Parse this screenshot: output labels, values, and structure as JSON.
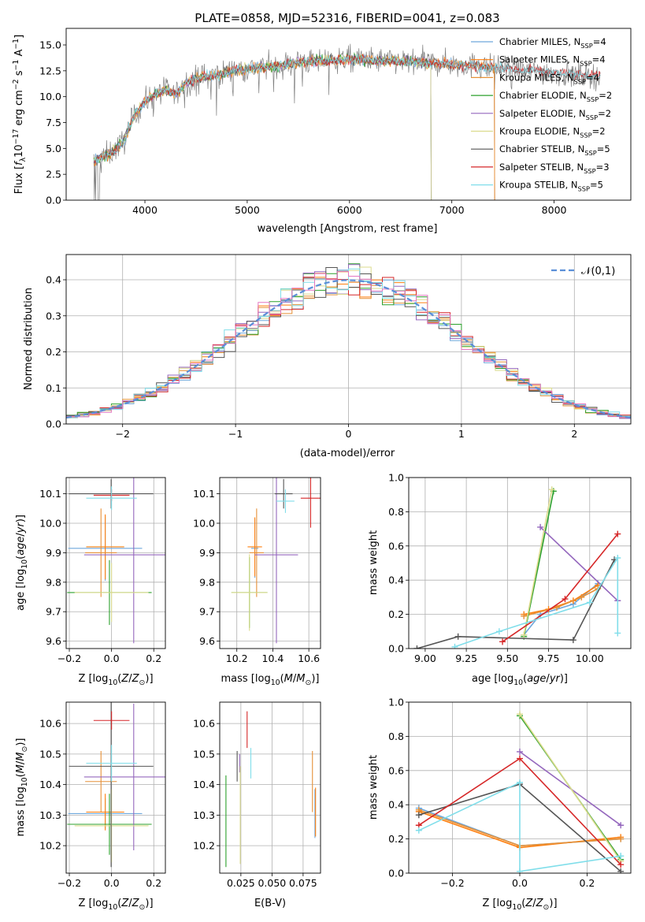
{
  "figure_title": "PLATE=0858, MJD=52316, FIBERID=0041, z=0.083",
  "colors": {
    "Chabrier MILES": "#6fa8dc",
    "Salpeter MILES": "#ff7f0e",
    "Kroupa MILES": "#e69138",
    "Chabrier ELODIE": "#2ca02c",
    "Salpeter ELODIE": "#9467bd",
    "Kroupa ELODIE": "#dbdb8d",
    "Chabrier STELIB": "#555555",
    "Salpeter STELIB": "#d62728",
    "Kroupa STELIB": "#80deea",
    "data": "#808080",
    "normal": "#5b8fd8",
    "hist_extra": "#e377c2"
  },
  "chart_data": [
    {
      "id": "spectrum",
      "type": "line",
      "title": "PLATE=0858, MJD=52316, FIBERID=0041, z=0.083",
      "xlabel": "wavelength [Angstrom, rest frame]",
      "ylabel": "Flux [f_λ10^-17 erg cm^-2 s^-1 A^-1]",
      "xlim": [
        3230,
        8750
      ],
      "ylim": [
        0,
        16.6
      ],
      "xticks": [
        4000,
        5000,
        6000,
        7000,
        8000
      ],
      "yticks": [
        0.0,
        2.5,
        5.0,
        7.5,
        10.0,
        12.5,
        15.0
      ],
      "legend_location": "right",
      "series": [
        {
          "name": "Chabrier MILES",
          "sub": "SSP",
          "n": "4"
        },
        {
          "name": "Salpeter MILES",
          "sub": "SSP",
          "n": "4"
        },
        {
          "name": "Kroupa MILES",
          "sub": "SSP",
          "n": "4"
        },
        {
          "name": "Chabrier ELODIE",
          "sub": "SSP",
          "n": "2"
        },
        {
          "name": "Salpeter ELODIE",
          "sub": "SSP",
          "n": "2"
        },
        {
          "name": "Kroupa ELODIE",
          "sub": "SSP",
          "n": "2"
        },
        {
          "name": "Chabrier STELIB",
          "sub": "SSP",
          "n": "5"
        },
        {
          "name": "Salpeter STELIB",
          "sub": "SSP",
          "n": "3"
        },
        {
          "name": "Kroupa STELIB",
          "sub": "SSP",
          "n": "5"
        }
      ],
      "continuum": {
        "x": [
          3500,
          3600,
          3700,
          3800,
          3900,
          4000,
          4100,
          4200,
          4300,
          4400,
          4500,
          4700,
          4900,
          5100,
          5300,
          5500,
          5700,
          6000,
          6300,
          6600,
          6900,
          7200,
          7500,
          7800,
          8100,
          8400
        ],
        "y": [
          3.8,
          4.2,
          4.8,
          5.8,
          8.3,
          9.5,
          10.2,
          10.7,
          10.2,
          11.3,
          11.8,
          12.1,
          12.6,
          12.8,
          13.0,
          13.3,
          13.5,
          13.6,
          13.5,
          13.4,
          13.2,
          13.0,
          12.7,
          12.5,
          12.2,
          12.0
        ]
      },
      "model_cutoffs": {
        "Kroupa ELODIE": 6800,
        "Salpeter ELODIE": 6800,
        "Chabrier ELODIE": 6800,
        "Kroupa MILES": 7420,
        "Salpeter MILES": 7420,
        "Chabrier MILES": 7420
      }
    },
    {
      "id": "residuals",
      "type": "step-histogram",
      "xlabel": "(data-model)/error",
      "ylabel": "Normed distribution",
      "xlim": [
        -2.5,
        2.5
      ],
      "ylim": [
        0,
        0.47
      ],
      "xticks": [
        -2,
        -1,
        0,
        1,
        2
      ],
      "yticks": [
        0.0,
        0.1,
        0.2,
        0.3,
        0.4
      ],
      "legend": "𝒩(0,1)",
      "legend_location": "upper right",
      "bin_width": 0.1
    },
    {
      "id": "age_vs_Z",
      "type": "errorbar",
      "xlabel": "Z [log10(Z/Z⊙)]",
      "ylabel": "age  [log10(age/yr)]",
      "xlim": [
        -0.215,
        0.255
      ],
      "ylim": [
        9.575,
        10.155
      ],
      "xticks": [
        -0.2,
        0.0,
        0.2
      ],
      "xticklabels": [
        "−0.2",
        "0.0",
        "0.2"
      ],
      "yticks": [
        9.6,
        9.7,
        9.8,
        9.9,
        10.0,
        10.1
      ],
      "points": [
        {
          "model": "Chabrier MILES",
          "x": -0.03,
          "xerr": 0.175,
          "y": 9.915,
          "yerr": 0.11
        },
        {
          "model": "Salpeter MILES",
          "x": -0.03,
          "xerr": 0.09,
          "y": 9.92,
          "yerr": 0.11
        },
        {
          "model": "Kroupa MILES",
          "x": -0.05,
          "xerr": 0.075,
          "y": 9.9,
          "yerr": 0.15
        },
        {
          "model": "Chabrier ELODIE",
          "x": -0.01,
          "xerr": 0.2,
          "y": 9.765,
          "yerr": 0.11
        },
        {
          "model": "Salpeter ELODIE",
          "x": 0.105,
          "xerr": 0.235,
          "y": 9.893,
          "yerr": 0.3
        },
        {
          "model": "Kroupa ELODIE",
          "x": 0.0,
          "xerr": 0.175,
          "y": 9.765,
          "yerr": 0.1
        },
        {
          "model": "Chabrier STELIB",
          "x": -0.002,
          "xerr": 0.2,
          "y": 10.1,
          "yerr": 0.05
        },
        {
          "model": "Salpeter STELIB",
          "x": 0.0,
          "xerr": 0.085,
          "y": 10.095,
          "yerr": 0.02
        },
        {
          "model": "Kroupa STELIB",
          "x": 0.0,
          "xerr": 0.12,
          "y": 10.085,
          "yerr": 0.04
        }
      ]
    },
    {
      "id": "age_vs_mass",
      "type": "errorbar",
      "xlabel": "mass [log10(M/M⊙)]",
      "xlim": [
        10.105,
        10.665
      ],
      "ylim": [
        9.575,
        10.155
      ],
      "xticks": [
        10.2,
        10.4,
        10.6
      ],
      "xticklabels": [
        "10.2",
        "10.4",
        "10.6"
      ],
      "yticks": [
        9.6,
        9.7,
        9.8,
        9.9,
        10.0,
        10.1
      ],
      "points": [
        {
          "model": "Chabrier MILES",
          "x": 10.3,
          "xerr": 0.02,
          "y": 9.915,
          "yerr": 0.1
        },
        {
          "model": "Salpeter MILES",
          "x": 10.3,
          "xerr": 0.04,
          "y": 9.92,
          "yerr": 0.1
        },
        {
          "model": "Kroupa MILES",
          "x": 10.31,
          "xerr": 0.04,
          "y": 9.9,
          "yerr": 0.15
        },
        {
          "model": "Chabrier ELODIE",
          "x": 10.27,
          "xerr": 0.1,
          "y": 9.765,
          "yerr": 0.12
        },
        {
          "model": "Salpeter ELODIE",
          "x": 10.42,
          "xerr": 0.12,
          "y": 9.893,
          "yerr": 0.3
        },
        {
          "model": "Kroupa ELODIE",
          "x": 10.27,
          "xerr": 0.1,
          "y": 9.765,
          "yerr": 0.13
        },
        {
          "model": "Chabrier STELIB",
          "x": 10.46,
          "xerr": 0.05,
          "y": 10.1,
          "yerr": 0.05
        },
        {
          "model": "Salpeter STELIB",
          "x": 10.61,
          "xerr": 0.055,
          "y": 10.085,
          "yerr": 0.1
        },
        {
          "model": "Kroupa STELIB",
          "x": 10.47,
          "xerr": 0.05,
          "y": 10.075,
          "yerr": 0.04
        }
      ]
    },
    {
      "id": "weight_vs_age",
      "type": "line",
      "xlabel": "age  [log10(age/yr)]",
      "ylabel": "mass weight",
      "xlim": [
        8.9,
        10.25
      ],
      "ylim": [
        0,
        1
      ],
      "xticks": [
        9.0,
        9.25,
        9.5,
        9.75,
        10.0
      ],
      "xticklabels": [
        "9.00",
        "9.25",
        "9.50",
        "9.75",
        "10.00"
      ],
      "yticks": [
        0.0,
        0.2,
        0.4,
        0.6,
        0.8,
        1.0
      ],
      "series": [
        {
          "name": "Chabrier MILES",
          "x": [
            9.6,
            9.7,
            9.9,
            10.05
          ],
          "y": [
            0.08,
            0.2,
            0.26,
            0.38
          ]
        },
        {
          "name": "Salpeter MILES",
          "x": [
            9.6,
            9.75,
            9.9,
            10.05
          ],
          "y": [
            0.2,
            0.23,
            0.28,
            0.37
          ]
        },
        {
          "name": "Kroupa MILES",
          "x": [
            9.6,
            9.8,
            9.95,
            10.05
          ],
          "y": [
            0.19,
            0.24,
            0.3,
            0.35
          ]
        },
        {
          "name": "Chabrier ELODIE",
          "x": [
            9.6,
            9.78
          ],
          "y": [
            0.07,
            0.92
          ]
        },
        {
          "name": "Salpeter ELODIE",
          "x": [
            9.7,
            10.17
          ],
          "y": [
            0.71,
            0.28
          ]
        },
        {
          "name": "Kroupa ELODIE",
          "x": [
            9.6,
            9.77
          ],
          "y": [
            0.08,
            0.93
          ]
        },
        {
          "name": "Chabrier STELIB",
          "x": [
            8.95,
            9.2,
            9.9,
            10.15
          ],
          "y": [
            0.0,
            0.07,
            0.05,
            0.52
          ]
        },
        {
          "name": "Salpeter STELIB",
          "x": [
            9.47,
            9.85,
            10.17
          ],
          "y": [
            0.04,
            0.29,
            0.67
          ]
        },
        {
          "name": "Kroupa STELIB",
          "x": [
            9.18,
            9.45,
            10.0,
            10.17,
            10.17
          ],
          "y": [
            0.01,
            0.1,
            0.27,
            0.53,
            0.09
          ]
        }
      ]
    },
    {
      "id": "mass_vs_Z",
      "type": "errorbar",
      "xlabel": "Z [log10(Z/Z⊙)]",
      "ylabel": "mass [log10(M/M⊙)]",
      "xlim": [
        -0.215,
        0.255
      ],
      "ylim": [
        10.11,
        10.67
      ],
      "xticks": [
        -0.2,
        0.0,
        0.2
      ],
      "xticklabels": [
        "−0.2",
        "0.0",
        "0.2"
      ],
      "yticks": [
        10.2,
        10.3,
        10.4,
        10.5,
        10.6
      ],
      "points": [
        {
          "model": "Chabrier MILES",
          "x": -0.03,
          "xerr": 0.175,
          "y": 10.305,
          "yerr": 0.05
        },
        {
          "model": "Salpeter MILES",
          "x": -0.03,
          "xerr": 0.09,
          "y": 10.31,
          "yerr": 0.06
        },
        {
          "model": "Kroupa MILES",
          "x": -0.05,
          "xerr": 0.075,
          "y": 10.41,
          "yerr": 0.1
        },
        {
          "model": "Chabrier ELODIE",
          "x": -0.01,
          "xerr": 0.2,
          "y": 10.27,
          "yerr": 0.1
        },
        {
          "model": "Salpeter ELODIE",
          "x": 0.105,
          "xerr": 0.235,
          "y": 10.425,
          "yerr": 0.24
        },
        {
          "model": "Kroupa ELODIE",
          "x": 0.0,
          "xerr": 0.175,
          "y": 10.265,
          "yerr": 0.12
        },
        {
          "model": "Chabrier STELIB",
          "x": -0.002,
          "xerr": 0.2,
          "y": 10.46,
          "yerr": 0.33
        },
        {
          "model": "Salpeter STELIB",
          "x": 0.0,
          "xerr": 0.085,
          "y": 10.61,
          "yerr": 0.03
        },
        {
          "model": "Kroupa STELIB",
          "x": 0.0,
          "xerr": 0.12,
          "y": 10.47,
          "yerr": 0.06
        }
      ]
    },
    {
      "id": "mass_vs_EBV",
      "type": "errorbar",
      "xlabel": "E(B-V)",
      "xlim": [
        0.008,
        0.089
      ],
      "ylim": [
        10.11,
        10.67
      ],
      "xticks": [
        0.025,
        0.05,
        0.075
      ],
      "xticklabels": [
        "0.025",
        "0.050",
        "0.075"
      ],
      "yticks": [
        10.2,
        10.3,
        10.4,
        10.5,
        10.6
      ],
      "points": [
        {
          "model": "Chabrier MILES",
          "x": 0.0845,
          "y": 10.305,
          "yerr": 0.08
        },
        {
          "model": "Salpeter MILES",
          "x": 0.085,
          "y": 10.31,
          "yerr": 0.08
        },
        {
          "model": "Kroupa MILES",
          "x": 0.0825,
          "y": 10.41,
          "yerr": 0.1
        },
        {
          "model": "Chabrier ELODIE",
          "x": 0.013,
          "y": 10.28,
          "yerr": 0.15
        },
        {
          "model": "Salpeter ELODIE",
          "x": 0.024,
          "y": 10.47,
          "yerr": 0.03
        },
        {
          "model": "Kroupa ELODIE",
          "x": 0.0245,
          "y": 10.3,
          "yerr": 0.16
        },
        {
          "model": "Chabrier STELIB",
          "x": 0.022,
          "y": 10.46,
          "yerr": 0.05
        },
        {
          "model": "Salpeter STELIB",
          "x": 0.03,
          "y": 10.58,
          "yerr": 0.06
        },
        {
          "model": "Kroupa STELIB",
          "x": 0.033,
          "y": 10.47,
          "yerr": 0.05
        }
      ]
    },
    {
      "id": "weight_vs_Z",
      "type": "line",
      "xlabel": "Z [log10(Z/Z⊙)]",
      "ylabel": "mass weight",
      "xlim": [
        -0.33,
        0.33
      ],
      "ylim": [
        0,
        1
      ],
      "xticks": [
        -0.2,
        0.0,
        0.2
      ],
      "xticklabels": [
        "−0.2",
        "0.0",
        "0.2"
      ],
      "yticks": [
        0.0,
        0.2,
        0.4,
        0.6,
        0.8,
        1.0
      ],
      "series": [
        {
          "name": "Chabrier MILES",
          "x": [
            -0.3,
            0.0,
            0.3
          ],
          "y": [
            0.38,
            0.16,
            0.2
          ]
        },
        {
          "name": "Salpeter MILES",
          "x": [
            -0.3,
            0.0,
            0.3
          ],
          "y": [
            0.36,
            0.15,
            0.21
          ]
        },
        {
          "name": "Kroupa MILES",
          "x": [
            -0.3,
            0.0,
            0.3
          ],
          "y": [
            0.37,
            0.16,
            0.2
          ]
        },
        {
          "name": "Chabrier ELODIE",
          "x": [
            0.0,
            0.3
          ],
          "y": [
            0.92,
            0.08
          ]
        },
        {
          "name": "Salpeter ELODIE",
          "x": [
            0.0,
            0.3
          ],
          "y": [
            0.71,
            0.28
          ]
        },
        {
          "name": "Kroupa ELODIE",
          "x": [
            0.0,
            0.3
          ],
          "y": [
            0.93,
            0.07
          ]
        },
        {
          "name": "Chabrier STELIB",
          "x": [
            -0.3,
            0.0,
            0.3
          ],
          "y": [
            0.34,
            0.52,
            0.01
          ]
        },
        {
          "name": "Salpeter STELIB",
          "x": [
            -0.3,
            0.0,
            0.3
          ],
          "y": [
            0.28,
            0.67,
            0.05
          ]
        },
        {
          "name": "Kroupa STELIB",
          "x": [
            -0.3,
            0.0,
            0.0,
            0.3,
            0.3
          ],
          "y": [
            0.25,
            0.53,
            0.01,
            0.1,
            0.1
          ]
        }
      ]
    }
  ]
}
